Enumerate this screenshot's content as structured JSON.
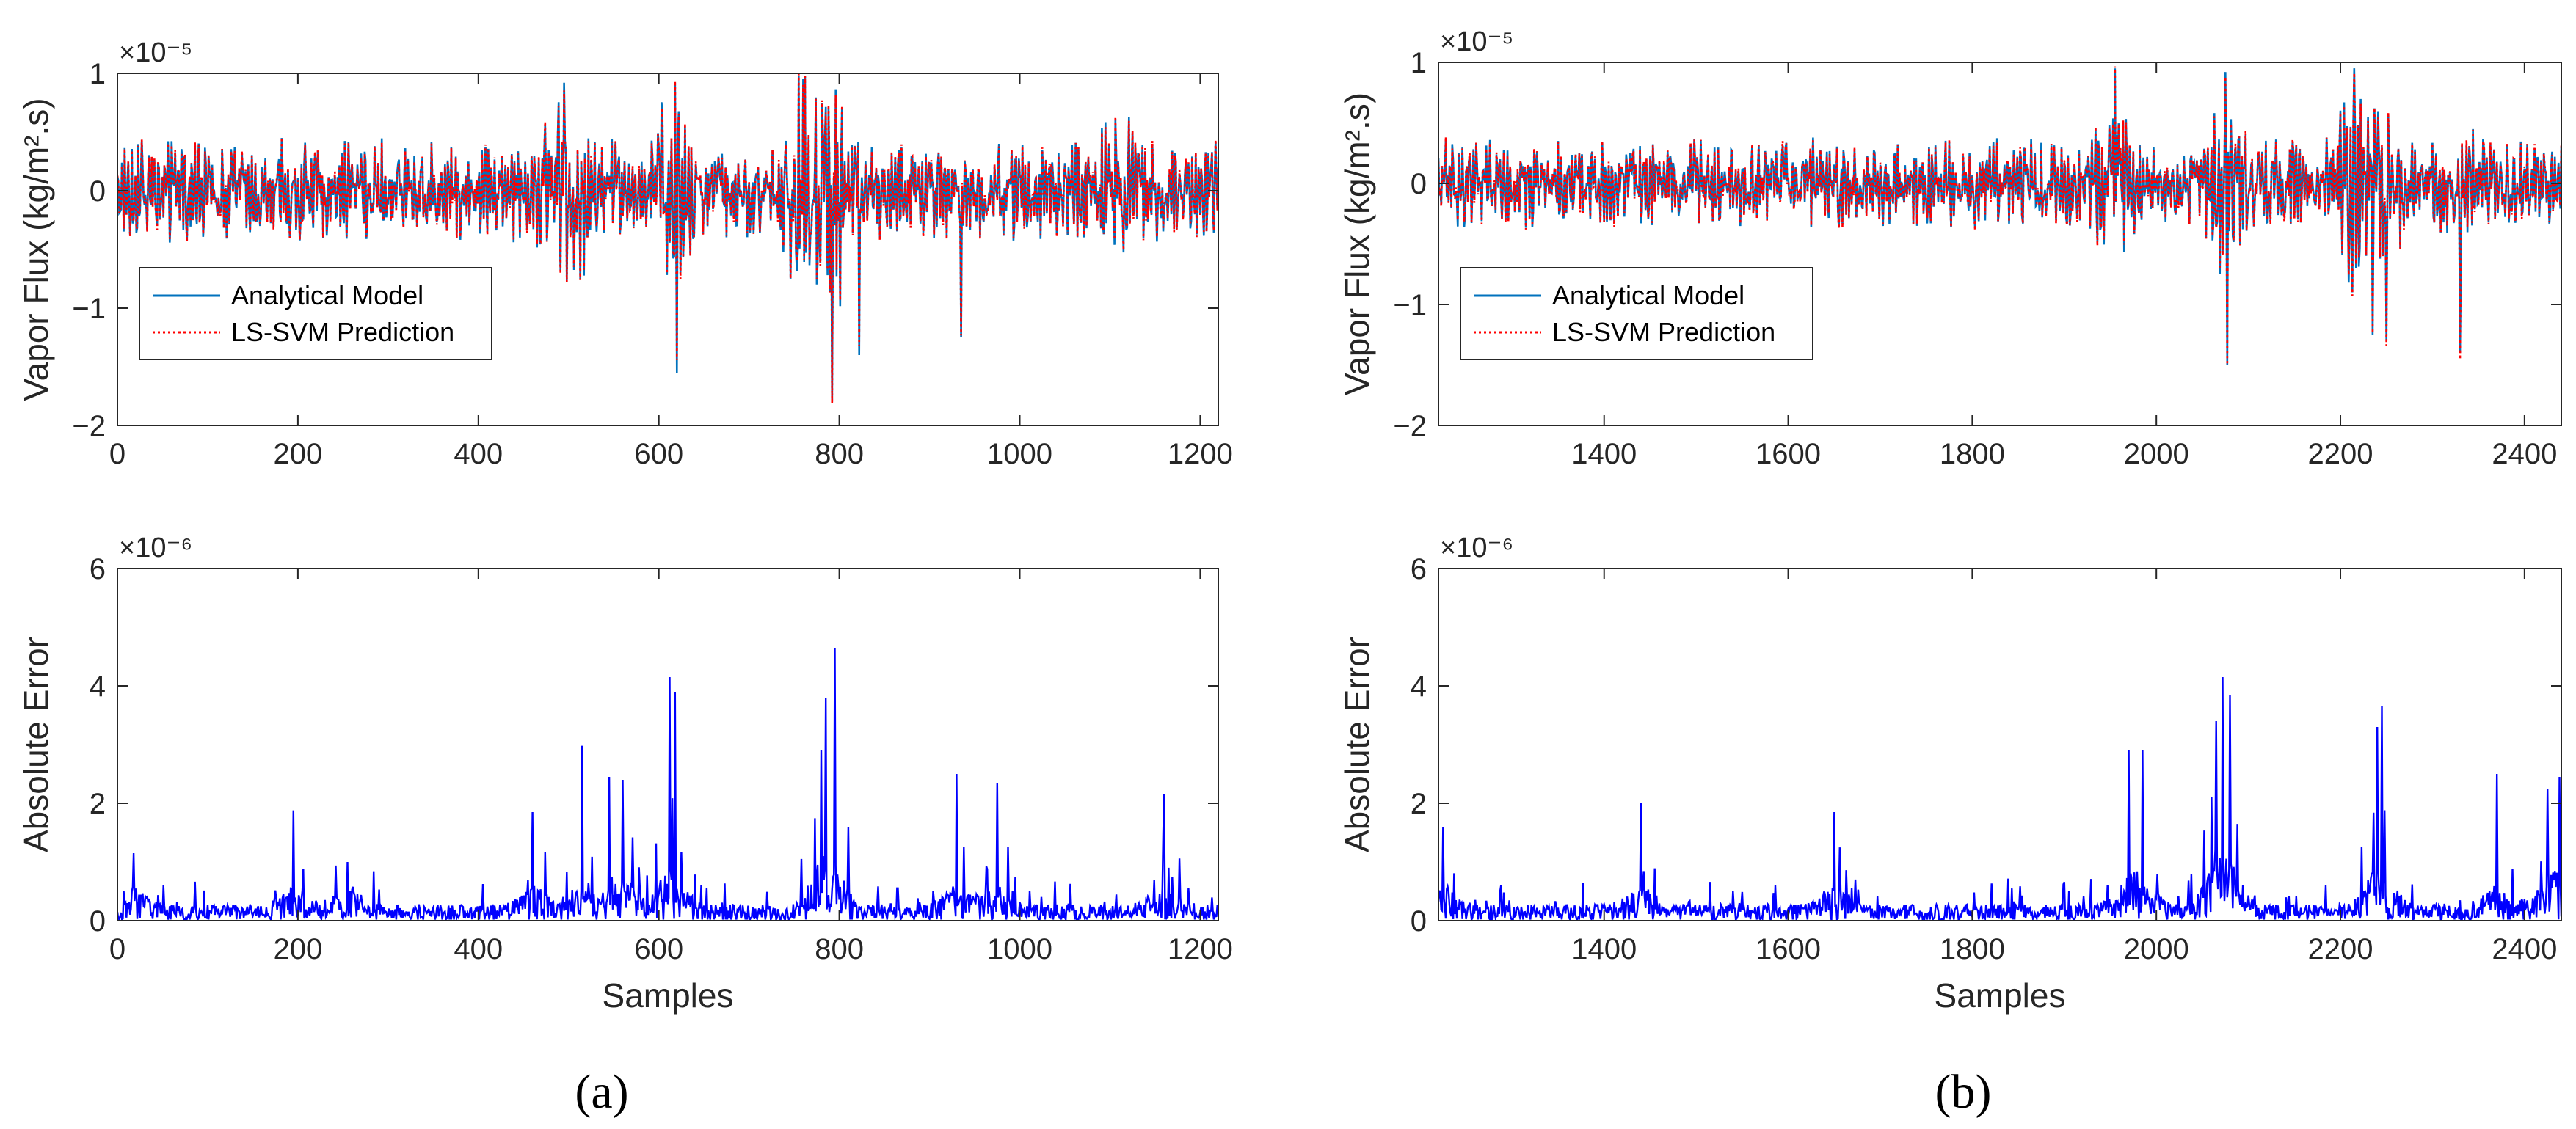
{
  "colors": {
    "analytical": "#0072BD",
    "lssvm": "#FF0000",
    "error": "#0000FF",
    "axis": "#262626"
  },
  "panel_captions": [
    "(a)",
    "(b)"
  ],
  "chart_data": [
    {
      "id": "a-top",
      "type": "line",
      "panel": "a",
      "ylabel": "Vapor Flux (kg/m².s)",
      "exponent": "×10⁻⁵",
      "xlabel": "",
      "xlim": [
        0,
        1220
      ],
      "ylim": [
        -2,
        1
      ],
      "xticks": [
        0,
        200,
        400,
        600,
        800,
        1000,
        1200
      ],
      "yticks": [
        -2,
        -1,
        0,
        1
      ],
      "legend": {
        "position": "bottom-left",
        "entries": [
          "Analytical Model",
          "LS-SVM Prediction"
        ]
      },
      "series": [
        {
          "name": "Analytical Model",
          "style": "solid"
        },
        {
          "name": "LS-SVM Prediction",
          "style": "dotted"
        }
      ],
      "signal": {
        "baseline_amplitude": 0.35,
        "bursts": [
          [
            490,
            0.9
          ],
          [
            515,
            0.8
          ],
          [
            615,
            1.3
          ],
          [
            760,
            1.6
          ],
          [
            790,
            1.7
          ],
          [
            1110,
            0.7
          ]
        ],
        "spikes": [
          [
            620,
            -1.55
          ],
          [
            792,
            -1.8
          ],
          [
            822,
            -1.4
          ],
          [
            760,
            0.95
          ],
          [
            495,
            0.92
          ],
          [
            618,
            0.92
          ],
          [
            935,
            -1.25
          ]
        ]
      }
    },
    {
      "id": "a-bottom",
      "type": "line",
      "panel": "a",
      "ylabel": "Absolute Error",
      "exponent": "×10⁻⁶",
      "xlabel": "Samples",
      "xlim": [
        0,
        1220
      ],
      "ylim": [
        0,
        6
      ],
      "xticks": [
        0,
        200,
        400,
        600,
        800,
        1000,
        1200
      ],
      "yticks": [
        0,
        2,
        4,
        6
      ],
      "series": [
        {
          "name": "Absolute Error",
          "style": "solid"
        }
      ],
      "peaks": [
        [
          18,
          1.15
        ],
        [
          195,
          1.88
        ],
        [
          255,
          1.0
        ],
        [
          460,
          1.85
        ],
        [
          515,
          2.98
        ],
        [
          545,
          2.45
        ],
        [
          560,
          2.4
        ],
        [
          612,
          4.15
        ],
        [
          618,
          3.9
        ],
        [
          780,
          2.9
        ],
        [
          785,
          3.8
        ],
        [
          795,
          4.65
        ],
        [
          930,
          2.5
        ],
        [
          975,
          2.35
        ],
        [
          1160,
          2.15
        ]
      ]
    },
    {
      "id": "b-top",
      "type": "line",
      "panel": "b",
      "ylabel": "Vapor Flux (kg/m².s)",
      "exponent": "×10⁻⁵",
      "xlabel": "",
      "xlim": [
        1220,
        2440
      ],
      "ylim": [
        -2,
        1
      ],
      "xticks": [
        1400,
        1600,
        1800,
        2000,
        2200,
        2400
      ],
      "yticks": [
        -2,
        -1,
        0,
        1
      ],
      "legend": {
        "position": "bottom-left",
        "entries": [
          "Analytical Model",
          "LS-SVM Prediction"
        ]
      },
      "series": [
        {
          "name": "Analytical Model",
          "style": "solid"
        },
        {
          "name": "LS-SVM Prediction",
          "style": "dotted"
        }
      ],
      "signal": {
        "baseline_amplitude": 0.3,
        "bursts": [
          [
            1955,
            0.9
          ],
          [
            2075,
            1.3
          ],
          [
            2215,
            1.4
          ],
          [
            2250,
            1.0
          ],
          [
            2330,
            0.7
          ]
        ],
        "spikes": [
          [
            1955,
            0.95
          ],
          [
            2075,
            0.92
          ],
          [
            2077,
            -1.5
          ],
          [
            2215,
            0.95
          ],
          [
            2235,
            -1.25
          ],
          [
            2250,
            -1.3
          ],
          [
            2330,
            -1.4
          ]
        ]
      }
    },
    {
      "id": "b-bottom",
      "type": "line",
      "panel": "b",
      "ylabel": "Absolute Error",
      "exponent": "×10⁻⁶",
      "xlabel": "Samples",
      "xlim": [
        1220,
        2440
      ],
      "ylim": [
        0,
        6
      ],
      "xticks": [
        1400,
        1600,
        1800,
        2000,
        2200,
        2400
      ],
      "yticks": [
        0,
        2,
        4,
        6
      ],
      "series": [
        {
          "name": "Absolute Error",
          "style": "solid"
        }
      ],
      "peaks": [
        [
          1225,
          1.6
        ],
        [
          1440,
          2.0
        ],
        [
          1650,
          1.85
        ],
        [
          1970,
          2.9
        ],
        [
          1985,
          2.9
        ],
        [
          2065,
          3.4
        ],
        [
          2072,
          4.15
        ],
        [
          2080,
          3.85
        ],
        [
          2240,
          3.3
        ],
        [
          2245,
          3.65
        ],
        [
          2370,
          2.5
        ],
        [
          2425,
          2.25
        ],
        [
          2438,
          2.45
        ]
      ]
    }
  ]
}
